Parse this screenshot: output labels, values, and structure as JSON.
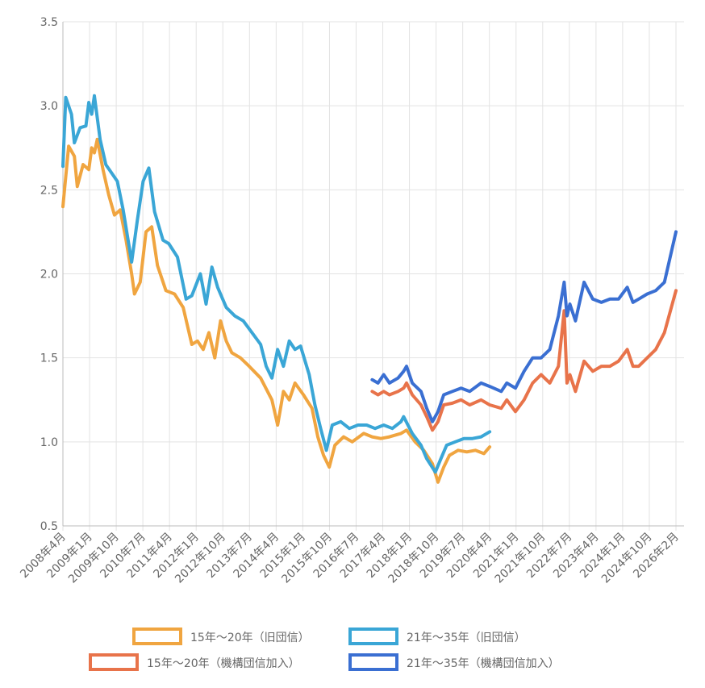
{
  "chart_data": {
    "type": "line",
    "title": "",
    "xlabel": "",
    "ylabel": "",
    "ylim": [
      0.5,
      3.5
    ],
    "y_ticks": [
      "0.5",
      "1.0",
      "1.5",
      "2.0",
      "2.5",
      "3.0",
      "3.5"
    ],
    "x_tick_labels": [
      "2008年4月",
      "2009年1月",
      "2009年10月",
      "2010年7月",
      "2011年4月",
      "2012年1月",
      "2012年10月",
      "2013年7月",
      "2014年4月",
      "2015年1月",
      "2015年10月",
      "2016年7月",
      "2017年4月",
      "2018年1月",
      "2018年10月",
      "2019年7月",
      "2020年4月",
      "2021年1月",
      "2021年10月",
      "2022年7月",
      "2023年4月",
      "2024年1月",
      "2024年10月",
      "2026年2月"
    ],
    "grid": true,
    "legend_position": "bottom",
    "series": [
      {
        "name": "15年～20年（旧団信）",
        "color": "#f0a540",
        "points": [
          [
            "2008-04",
            2.4
          ],
          [
            "2008-06",
            2.76
          ],
          [
            "2008-08",
            2.7
          ],
          [
            "2008-09",
            2.52
          ],
          [
            "2008-11",
            2.65
          ],
          [
            "2009-01",
            2.62
          ],
          [
            "2009-02",
            2.75
          ],
          [
            "2009-03",
            2.72
          ],
          [
            "2009-04",
            2.8
          ],
          [
            "2009-06",
            2.62
          ],
          [
            "2009-08",
            2.47
          ],
          [
            "2009-10",
            2.35
          ],
          [
            "2009-12",
            2.38
          ],
          [
            "2010-02",
            2.2
          ],
          [
            "2010-04",
            2.0
          ],
          [
            "2010-05",
            1.88
          ],
          [
            "2010-07",
            1.95
          ],
          [
            "2010-09",
            2.25
          ],
          [
            "2010-11",
            2.28
          ],
          [
            "2011-01",
            2.05
          ],
          [
            "2011-04",
            1.9
          ],
          [
            "2011-07",
            1.88
          ],
          [
            "2011-10",
            1.8
          ],
          [
            "2012-01",
            1.58
          ],
          [
            "2012-03",
            1.6
          ],
          [
            "2012-05",
            1.55
          ],
          [
            "2012-07",
            1.65
          ],
          [
            "2012-09",
            1.5
          ],
          [
            "2012-11",
            1.72
          ],
          [
            "2013-01",
            1.6
          ],
          [
            "2013-03",
            1.53
          ],
          [
            "2013-06",
            1.5
          ],
          [
            "2013-09",
            1.45
          ],
          [
            "2014-01",
            1.38
          ],
          [
            "2014-05",
            1.25
          ],
          [
            "2014-07",
            1.1
          ],
          [
            "2014-09",
            1.3
          ],
          [
            "2014-11",
            1.25
          ],
          [
            "2015-01",
            1.35
          ],
          [
            "2015-04",
            1.28
          ],
          [
            "2015-07",
            1.2
          ],
          [
            "2015-09",
            1.03
          ],
          [
            "2015-11",
            0.92
          ],
          [
            "2016-01",
            0.85
          ],
          [
            "2016-03",
            0.98
          ],
          [
            "2016-06",
            1.03
          ],
          [
            "2016-09",
            1.0
          ],
          [
            "2017-01",
            1.05
          ],
          [
            "2017-04",
            1.03
          ],
          [
            "2017-07",
            1.02
          ],
          [
            "2017-10",
            1.03
          ],
          [
            "2018-02",
            1.05
          ],
          [
            "2018-04",
            1.07
          ],
          [
            "2018-07",
            1.0
          ],
          [
            "2018-10",
            0.95
          ],
          [
            "2019-01",
            0.87
          ],
          [
            "2019-03",
            0.76
          ],
          [
            "2019-05",
            0.85
          ],
          [
            "2019-07",
            0.92
          ],
          [
            "2019-10",
            0.95
          ],
          [
            "2020-01",
            0.94
          ],
          [
            "2020-04",
            0.95
          ],
          [
            "2020-07",
            0.93
          ],
          [
            "2020-09",
            0.97
          ]
        ]
      },
      {
        "name": "21年～35年（旧団信）",
        "color": "#3aa6d6",
        "points": [
          [
            "2008-04",
            2.64
          ],
          [
            "2008-05",
            3.05
          ],
          [
            "2008-07",
            2.95
          ],
          [
            "2008-08",
            2.78
          ],
          [
            "2008-10",
            2.87
          ],
          [
            "2008-12",
            2.88
          ],
          [
            "2009-01",
            3.02
          ],
          [
            "2009-02",
            2.95
          ],
          [
            "2009-03",
            3.06
          ],
          [
            "2009-05",
            2.8
          ],
          [
            "2009-07",
            2.65
          ],
          [
            "2009-09",
            2.6
          ],
          [
            "2009-11",
            2.55
          ],
          [
            "2010-01",
            2.38
          ],
          [
            "2010-03",
            2.18
          ],
          [
            "2010-04",
            2.07
          ],
          [
            "2010-06",
            2.32
          ],
          [
            "2010-08",
            2.55
          ],
          [
            "2010-10",
            2.63
          ],
          [
            "2010-12",
            2.37
          ],
          [
            "2011-03",
            2.2
          ],
          [
            "2011-05",
            2.18
          ],
          [
            "2011-08",
            2.1
          ],
          [
            "2011-11",
            1.85
          ],
          [
            "2012-01",
            1.87
          ],
          [
            "2012-04",
            2.0
          ],
          [
            "2012-06",
            1.82
          ],
          [
            "2012-08",
            2.04
          ],
          [
            "2012-10",
            1.92
          ],
          [
            "2013-01",
            1.8
          ],
          [
            "2013-04",
            1.75
          ],
          [
            "2013-07",
            1.72
          ],
          [
            "2013-10",
            1.65
          ],
          [
            "2014-01",
            1.58
          ],
          [
            "2014-03",
            1.45
          ],
          [
            "2014-05",
            1.38
          ],
          [
            "2014-07",
            1.55
          ],
          [
            "2014-09",
            1.45
          ],
          [
            "2014-11",
            1.6
          ],
          [
            "2015-01",
            1.55
          ],
          [
            "2015-03",
            1.57
          ],
          [
            "2015-06",
            1.4
          ],
          [
            "2015-08",
            1.22
          ],
          [
            "2015-10",
            1.08
          ],
          [
            "2015-12",
            0.95
          ],
          [
            "2016-02",
            1.1
          ],
          [
            "2016-05",
            1.12
          ],
          [
            "2016-08",
            1.08
          ],
          [
            "2016-11",
            1.1
          ],
          [
            "2017-02",
            1.1
          ],
          [
            "2017-05",
            1.08
          ],
          [
            "2017-08",
            1.1
          ],
          [
            "2017-11",
            1.08
          ],
          [
            "2018-02",
            1.12
          ],
          [
            "2018-03",
            1.15
          ],
          [
            "2018-06",
            1.05
          ],
          [
            "2018-09",
            0.98
          ],
          [
            "2018-11",
            0.9
          ],
          [
            "2019-02",
            0.82
          ],
          [
            "2019-04",
            0.9
          ],
          [
            "2019-06",
            0.98
          ],
          [
            "2019-09",
            1.0
          ],
          [
            "2019-12",
            1.02
          ],
          [
            "2020-03",
            1.02
          ],
          [
            "2020-06",
            1.03
          ],
          [
            "2020-09",
            1.06
          ]
        ]
      },
      {
        "name": "15年～20年（機構団信加入）",
        "color": "#e8734a",
        "points": [
          [
            "2017-04",
            1.3
          ],
          [
            "2017-06",
            1.28
          ],
          [
            "2017-08",
            1.3
          ],
          [
            "2017-10",
            1.28
          ],
          [
            "2018-01",
            1.3
          ],
          [
            "2018-03",
            1.32
          ],
          [
            "2018-04",
            1.35
          ],
          [
            "2018-06",
            1.28
          ],
          [
            "2018-09",
            1.22
          ],
          [
            "2018-11",
            1.15
          ],
          [
            "2019-01",
            1.07
          ],
          [
            "2019-03",
            1.12
          ],
          [
            "2019-05",
            1.22
          ],
          [
            "2019-08",
            1.23
          ],
          [
            "2019-11",
            1.25
          ],
          [
            "2020-02",
            1.22
          ],
          [
            "2020-06",
            1.25
          ],
          [
            "2020-09",
            1.22
          ],
          [
            "2021-01",
            1.2
          ],
          [
            "2021-03",
            1.25
          ],
          [
            "2021-06",
            1.18
          ],
          [
            "2021-09",
            1.25
          ],
          [
            "2021-12",
            1.35
          ],
          [
            "2022-03",
            1.4
          ],
          [
            "2022-06",
            1.35
          ],
          [
            "2022-09",
            1.45
          ],
          [
            "2022-11",
            1.78
          ],
          [
            "2022-12",
            1.35
          ],
          [
            "2023-01",
            1.4
          ],
          [
            "2023-03",
            1.3
          ],
          [
            "2023-06",
            1.48
          ],
          [
            "2023-09",
            1.42
          ],
          [
            "2023-12",
            1.45
          ],
          [
            "2024-03",
            1.45
          ],
          [
            "2024-06",
            1.48
          ],
          [
            "2024-09",
            1.55
          ],
          [
            "2024-11",
            1.45
          ],
          [
            "2025-01",
            1.45
          ],
          [
            "2025-04",
            1.5
          ],
          [
            "2025-07",
            1.55
          ],
          [
            "2025-10",
            1.65
          ],
          [
            "2026-02",
            1.9
          ]
        ]
      },
      {
        "name": "21年～35年（機構団信加入）",
        "color": "#3a6fd2",
        "points": [
          [
            "2017-04",
            1.37
          ],
          [
            "2017-06",
            1.35
          ],
          [
            "2017-08",
            1.4
          ],
          [
            "2017-10",
            1.35
          ],
          [
            "2018-01",
            1.38
          ],
          [
            "2018-03",
            1.42
          ],
          [
            "2018-04",
            1.45
          ],
          [
            "2018-06",
            1.35
          ],
          [
            "2018-09",
            1.3
          ],
          [
            "2018-11",
            1.2
          ],
          [
            "2019-01",
            1.12
          ],
          [
            "2019-03",
            1.18
          ],
          [
            "2019-05",
            1.28
          ],
          [
            "2019-08",
            1.3
          ],
          [
            "2019-11",
            1.32
          ],
          [
            "2020-02",
            1.3
          ],
          [
            "2020-06",
            1.35
          ],
          [
            "2020-09",
            1.33
          ],
          [
            "2021-01",
            1.3
          ],
          [
            "2021-03",
            1.35
          ],
          [
            "2021-06",
            1.32
          ],
          [
            "2021-09",
            1.42
          ],
          [
            "2021-12",
            1.5
          ],
          [
            "2022-03",
            1.5
          ],
          [
            "2022-06",
            1.55
          ],
          [
            "2022-09",
            1.75
          ],
          [
            "2022-11",
            1.95
          ],
          [
            "2022-12",
            1.75
          ],
          [
            "2023-01",
            1.82
          ],
          [
            "2023-03",
            1.72
          ],
          [
            "2023-06",
            1.95
          ],
          [
            "2023-09",
            1.85
          ],
          [
            "2023-12",
            1.83
          ],
          [
            "2024-03",
            1.85
          ],
          [
            "2024-06",
            1.85
          ],
          [
            "2024-09",
            1.92
          ],
          [
            "2024-11",
            1.83
          ],
          [
            "2025-01",
            1.85
          ],
          [
            "2025-04",
            1.88
          ],
          [
            "2025-07",
            1.9
          ],
          [
            "2025-10",
            1.95
          ],
          [
            "2026-02",
            2.25
          ]
        ]
      }
    ]
  }
}
